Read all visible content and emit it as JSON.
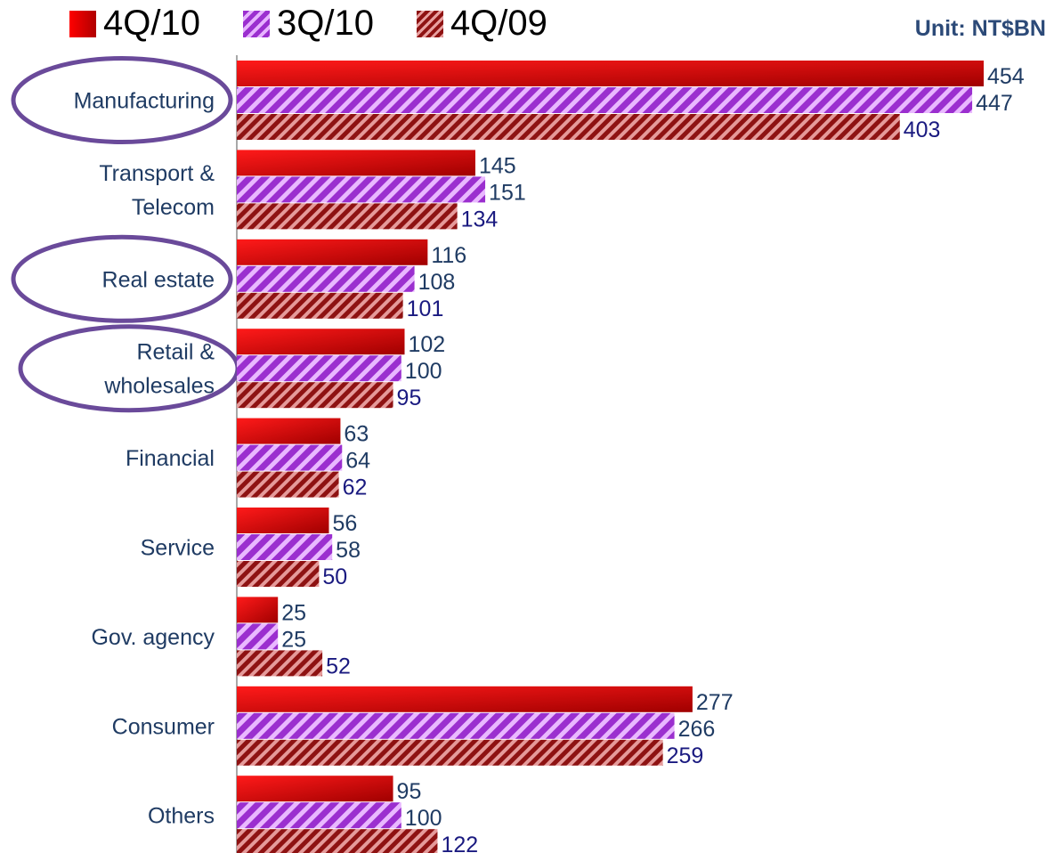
{
  "legend": {
    "items": [
      {
        "label": "4Q/10",
        "color": "#ee0000"
      },
      {
        "label": "3Q/10",
        "color": "#9b2fcf"
      },
      {
        "label": "4Q/09",
        "color": "#8e1212"
      }
    ]
  },
  "unit_label": "Unit: NT$BN",
  "highlighted_categories": [
    "Manufacturing",
    "Real estate",
    "Retail & wholesales"
  ],
  "chart_data": {
    "type": "bar",
    "orientation": "horizontal",
    "categories": [
      "Manufacturing",
      "Transport & Telecom",
      "Real estate",
      "Retail & wholesales",
      "Financial",
      "Service",
      "Gov. agency",
      "Consumer",
      "Others"
    ],
    "series": [
      {
        "name": "4Q/10",
        "values": [
          454,
          145,
          116,
          102,
          63,
          56,
          25,
          277,
          95
        ]
      },
      {
        "name": "3Q/10",
        "values": [
          447,
          151,
          108,
          100,
          64,
          58,
          25,
          266,
          100
        ]
      },
      {
        "name": "4Q/09",
        "values": [
          403,
          134,
          101,
          95,
          62,
          50,
          52,
          259,
          122
        ]
      }
    ],
    "unit": "NT$BN",
    "xlim": [
      0,
      480
    ],
    "data_labels": true,
    "legend_position": "top-left",
    "grid": false
  }
}
